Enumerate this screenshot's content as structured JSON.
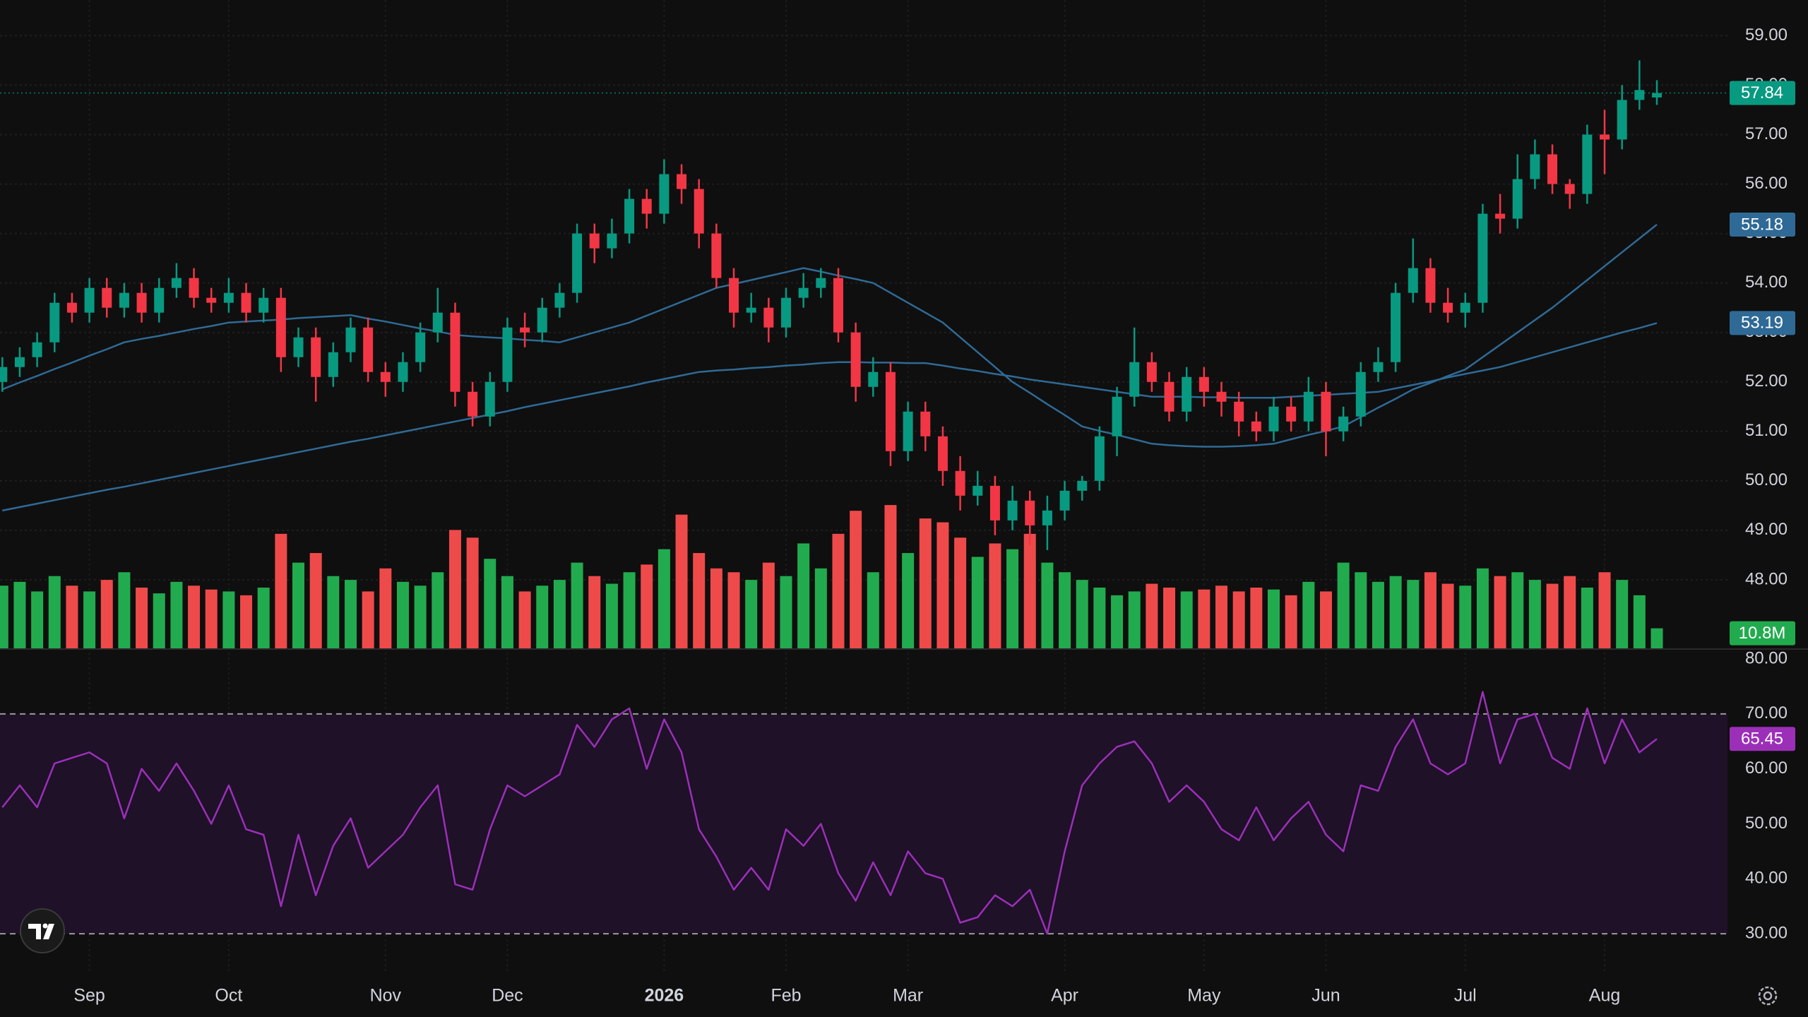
{
  "chart_data": [
    {
      "type": "candlestick",
      "categories": [
        null,
        null,
        null,
        null,
        null,
        "Sep",
        null,
        null,
        null,
        null,
        null,
        null,
        null,
        "Oct",
        null,
        null,
        null,
        null,
        null,
        null,
        null,
        null,
        "Nov",
        null,
        null,
        null,
        null,
        null,
        null,
        "Dec",
        null,
        null,
        null,
        null,
        null,
        null,
        null,
        null,
        "2026",
        null,
        null,
        null,
        null,
        null,
        null,
        "Feb",
        null,
        null,
        null,
        null,
        null,
        null,
        "Mar",
        null,
        null,
        null,
        null,
        null,
        null,
        null,
        null,
        "Apr",
        null,
        null,
        null,
        null,
        null,
        null,
        null,
        "May",
        null,
        null,
        null,
        null,
        null,
        null,
        "Jun",
        null,
        null,
        null,
        null,
        null,
        null,
        null,
        "Jul",
        null,
        null,
        null,
        null,
        null,
        null,
        null,
        "Aug",
        null,
        null,
        null
      ],
      "open": [
        52.0,
        52.3,
        52.5,
        52.8,
        53.6,
        53.4,
        53.9,
        53.5,
        53.8,
        53.4,
        53.9,
        54.1,
        53.7,
        53.6,
        53.8,
        53.4,
        53.7,
        52.5,
        52.9,
        52.1,
        52.6,
        53.1,
        52.2,
        52.0,
        52.4,
        53.0,
        53.4,
        51.8,
        51.3,
        52.0,
        53.1,
        53.0,
        53.5,
        53.8,
        55.0,
        54.7,
        55.0,
        55.7,
        55.4,
        56.2,
        55.9,
        55.0,
        54.1,
        53.4,
        53.5,
        53.1,
        53.7,
        53.9,
        54.1,
        53.0,
        51.9,
        52.2,
        50.6,
        51.4,
        50.9,
        50.2,
        49.7,
        49.9,
        49.2,
        49.6,
        49.1,
        49.4,
        49.8,
        50.0,
        50.9,
        51.7,
        52.4,
        52.0,
        51.4,
        52.1,
        51.8,
        51.6,
        51.2,
        51.0,
        51.5,
        51.2,
        51.8,
        51.0,
        51.3,
        52.2,
        52.4,
        53.8,
        54.3,
        53.6,
        53.4,
        53.6,
        55.4,
        55.3,
        56.1,
        56.6,
        56.0,
        55.8,
        57.0,
        56.9,
        57.7,
        57.75
      ],
      "high": [
        52.5,
        52.7,
        53.0,
        53.8,
        53.8,
        54.1,
        54.1,
        54.0,
        54.0,
        54.1,
        54.4,
        54.3,
        53.9,
        54.1,
        54.0,
        53.9,
        53.9,
        53.1,
        53.1,
        52.8,
        53.3,
        53.3,
        52.4,
        52.6,
        53.2,
        53.9,
        53.6,
        52.0,
        52.2,
        53.3,
        53.4,
        53.7,
        54.0,
        55.2,
        55.2,
        55.3,
        55.9,
        55.9,
        56.5,
        56.4,
        56.1,
        55.2,
        54.3,
        53.8,
        53.7,
        53.9,
        54.2,
        54.3,
        54.3,
        53.2,
        52.5,
        52.4,
        51.6,
        51.6,
        51.1,
        50.5,
        50.2,
        50.1,
        49.9,
        49.8,
        49.7,
        50.0,
        50.1,
        51.1,
        51.9,
        53.1,
        52.6,
        52.2,
        52.3,
        52.3,
        52.0,
        51.8,
        51.4,
        51.7,
        51.7,
        52.1,
        52.0,
        51.5,
        52.4,
        52.7,
        54.0,
        54.9,
        54.5,
        53.9,
        53.8,
        55.6,
        55.8,
        56.6,
        56.9,
        56.8,
        56.1,
        57.2,
        57.5,
        58.0,
        58.5,
        58.1
      ],
      "low": [
        51.8,
        52.1,
        52.3,
        52.6,
        53.2,
        53.2,
        53.3,
        53.3,
        53.2,
        53.2,
        53.7,
        53.5,
        53.4,
        53.4,
        53.2,
        53.2,
        52.2,
        52.3,
        51.6,
        51.9,
        52.4,
        52.0,
        51.7,
        51.8,
        52.2,
        52.8,
        51.5,
        51.1,
        51.1,
        51.8,
        52.7,
        52.8,
        53.3,
        53.6,
        54.4,
        54.5,
        54.8,
        55.1,
        55.2,
        55.6,
        54.7,
        53.9,
        53.1,
        53.2,
        52.8,
        52.9,
        53.5,
        53.7,
        52.8,
        51.6,
        51.7,
        50.3,
        50.4,
        50.6,
        49.9,
        49.4,
        49.5,
        48.9,
        49.0,
        48.7,
        48.6,
        49.2,
        49.6,
        49.8,
        50.5,
        51.5,
        51.8,
        51.2,
        51.2,
        51.5,
        51.3,
        50.9,
        50.8,
        50.8,
        51.0,
        51.0,
        50.5,
        50.8,
        51.1,
        52.0,
        52.2,
        53.6,
        53.4,
        53.2,
        53.1,
        53.4,
        55.0,
        55.1,
        55.9,
        55.8,
        55.5,
        55.6,
        56.2,
        56.7,
        57.5,
        57.6
      ],
      "close": [
        52.3,
        52.5,
        52.8,
        53.6,
        53.4,
        53.9,
        53.5,
        53.8,
        53.4,
        53.9,
        54.1,
        53.7,
        53.6,
        53.8,
        53.4,
        53.7,
        52.5,
        52.9,
        52.1,
        52.6,
        53.1,
        52.2,
        52.0,
        52.4,
        53.0,
        53.4,
        51.8,
        51.3,
        52.0,
        53.1,
        53.0,
        53.5,
        53.8,
        55.0,
        54.7,
        55.0,
        55.7,
        55.4,
        56.2,
        55.9,
        55.0,
        54.1,
        53.4,
        53.5,
        53.1,
        53.7,
        53.9,
        54.1,
        53.0,
        51.9,
        52.2,
        50.6,
        51.4,
        50.9,
        50.2,
        49.7,
        49.9,
        49.2,
        49.6,
        49.1,
        49.4,
        49.8,
        50.0,
        50.9,
        51.7,
        52.4,
        52.0,
        51.4,
        52.1,
        51.8,
        51.6,
        51.2,
        51.0,
        51.5,
        51.2,
        51.8,
        51.0,
        51.3,
        52.2,
        52.4,
        53.8,
        54.3,
        53.6,
        53.4,
        53.6,
        55.4,
        55.3,
        56.1,
        56.6,
        56.0,
        55.8,
        57.0,
        56.9,
        57.7,
        57.9,
        57.84
      ],
      "up_color": "#089981",
      "down_color": "#f23645",
      "ylim": [
        46.6,
        59.72
      ],
      "yticks": [
        {
          "value": 48,
          "label": "48.00"
        },
        {
          "value": 49,
          "label": "49.00"
        },
        {
          "value": 50,
          "label": "50.00"
        },
        {
          "value": 51,
          "label": "51.00"
        },
        {
          "value": 52,
          "label": "52.00"
        },
        {
          "value": 53,
          "label": "53.00"
        },
        {
          "value": 54,
          "label": "54.00"
        },
        {
          "value": 55,
          "label": "55.00"
        },
        {
          "value": 56,
          "label": "56.00"
        },
        {
          "value": 57,
          "label": "57.00"
        },
        {
          "value": 58,
          "label": "58.00"
        },
        {
          "value": 59,
          "label": "59.00"
        }
      ],
      "grid": true,
      "series": [
        {
          "color": "#2f6a96",
          "values": [
            51.85,
            51.99,
            52.12,
            52.26,
            52.39,
            52.53,
            52.66,
            52.8,
            52.87,
            52.93,
            53.0,
            53.07,
            53.13,
            53.2,
            53.22,
            53.24,
            53.26,
            53.29,
            53.31,
            53.33,
            53.35,
            53.28,
            53.22,
            53.15,
            53.08,
            53.02,
            52.95,
            52.92,
            52.9,
            52.88,
            52.85,
            52.83,
            52.8,
            52.9,
            53.0,
            53.1,
            53.2,
            53.34,
            53.48,
            53.62,
            53.76,
            53.9,
            53.98,
            54.06,
            54.14,
            54.22,
            54.3,
            54.23,
            54.15,
            54.08,
            54.0,
            53.8,
            53.6,
            53.4,
            53.2,
            52.9,
            52.6,
            52.3,
            52.0,
            51.78,
            51.55,
            51.33,
            51.1,
            51.01,
            50.93,
            50.84,
            50.75,
            50.72,
            50.7,
            50.69,
            50.69,
            50.7,
            50.72,
            50.75,
            50.84,
            50.93,
            51.01,
            51.1,
            51.29,
            51.48,
            51.66,
            51.85,
            51.98,
            52.12,
            52.25,
            52.5,
            52.75,
            53.0,
            53.25,
            53.5,
            53.78,
            54.06,
            54.34,
            54.62,
            54.9,
            55.18
          ]
        },
        {
          "color": "#2f6a96",
          "values": [
            49.4,
            49.47,
            49.54,
            49.61,
            49.68,
            49.75,
            49.82,
            49.88,
            49.95,
            50.02,
            50.09,
            50.16,
            50.23,
            50.3,
            50.37,
            50.44,
            50.51,
            50.58,
            50.65,
            50.72,
            50.79,
            50.85,
            50.92,
            50.99,
            51.06,
            51.13,
            51.2,
            51.27,
            51.34,
            51.41,
            51.49,
            51.56,
            51.63,
            51.7,
            51.77,
            51.84,
            51.91,
            51.99,
            52.06,
            52.13,
            52.2,
            52.23,
            52.25,
            52.28,
            52.3,
            52.33,
            52.35,
            52.38,
            52.4,
            52.4,
            52.39,
            52.39,
            52.38,
            52.38,
            52.33,
            52.27,
            52.22,
            52.16,
            52.11,
            52.05,
            52.0,
            51.95,
            51.9,
            51.85,
            51.8,
            51.75,
            51.7,
            51.7,
            51.7,
            51.69,
            51.69,
            51.68,
            51.68,
            51.68,
            51.7,
            51.72,
            51.74,
            51.76,
            51.78,
            51.8,
            51.87,
            51.94,
            52.01,
            52.09,
            52.16,
            52.23,
            52.3,
            52.4,
            52.5,
            52.6,
            52.7,
            52.8,
            52.9,
            53.0,
            53.09,
            53.19
          ]
        }
      ]
    },
    {
      "type": "bar",
      "values": [
        33,
        35,
        30,
        38,
        33,
        30,
        36,
        40,
        32,
        29,
        35,
        33,
        31,
        30,
        28,
        32,
        60,
        45,
        50,
        38,
        36,
        30,
        42,
        35,
        33,
        40,
        62,
        58,
        47,
        38,
        30,
        33,
        36,
        45,
        38,
        34,
        40,
        44,
        52,
        70,
        50,
        42,
        40,
        36,
        45,
        38,
        55,
        42,
        60,
        72,
        40,
        75,
        50,
        68,
        66,
        58,
        48,
        55,
        52,
        60,
        45,
        40,
        36,
        32,
        28,
        30,
        34,
        32,
        30,
        31,
        33,
        30,
        32,
        31,
        28,
        35,
        30,
        45,
        40,
        35,
        38,
        36,
        40,
        34,
        33,
        42,
        38,
        40,
        36,
        34,
        38,
        32,
        40,
        36,
        28,
        10.8
      ],
      "value_labels": [
        null,
        null,
        null,
        null,
        null,
        null,
        null,
        null,
        null,
        null,
        null,
        null,
        null,
        null,
        null,
        null,
        null,
        null,
        null,
        null,
        null,
        null,
        null,
        null,
        null,
        null,
        null,
        null,
        null,
        null,
        null,
        null,
        null,
        null,
        null,
        null,
        null,
        null,
        null,
        null,
        null,
        null,
        null,
        null,
        null,
        null,
        null,
        null,
        null,
        null,
        null,
        null,
        null,
        null,
        null,
        null,
        null,
        null,
        null,
        null,
        null,
        null,
        null,
        null,
        null,
        null,
        null,
        null,
        null,
        null,
        null,
        null,
        null,
        null,
        null,
        null,
        null,
        null,
        null,
        null,
        null,
        null,
        null,
        null,
        null,
        null,
        null,
        null,
        null,
        null,
        null,
        null,
        null,
        null,
        null,
        "10.8M"
      ],
      "up_color": "#22ab4e",
      "down_color": "#ef4a4a",
      "ylim": [
        0,
        338
      ]
    },
    {
      "type": "line",
      "values": [
        53,
        57,
        53,
        61,
        62,
        63,
        61,
        51,
        60,
        56,
        61,
        56,
        50,
        57,
        49,
        48,
        35,
        48,
        37,
        46,
        51,
        42,
        45,
        48,
        53,
        57,
        39,
        38,
        49,
        57,
        55,
        57,
        59,
        68,
        64,
        69,
        71,
        60,
        69,
        63,
        49,
        44,
        38,
        42,
        38,
        49,
        46,
        50,
        41,
        36,
        43,
        37,
        45,
        41,
        40,
        32,
        33,
        37,
        35,
        38,
        30,
        45,
        57,
        61,
        64,
        65,
        61,
        54,
        57,
        54,
        49,
        47,
        53,
        47,
        51,
        54,
        48,
        45,
        57,
        56,
        64,
        69,
        61,
        59,
        61,
        74,
        61,
        69,
        70,
        62,
        60,
        71,
        61,
        69,
        63,
        65.45
      ],
      "color": "#9c2fb8",
      "ylim": [
        23.2,
        81.8
      ],
      "yticks": [
        {
          "value": 30,
          "label": "30.00"
        },
        {
          "value": 40,
          "label": "40.00"
        },
        {
          "value": 50,
          "label": "50.00"
        },
        {
          "value": 60,
          "label": "60.00"
        },
        {
          "value": 70,
          "label": "70.00"
        },
        {
          "value": 80,
          "label": "80.00"
        }
      ],
      "band": [
        30,
        70
      ],
      "band_color": "#1e1128"
    }
  ]
}
